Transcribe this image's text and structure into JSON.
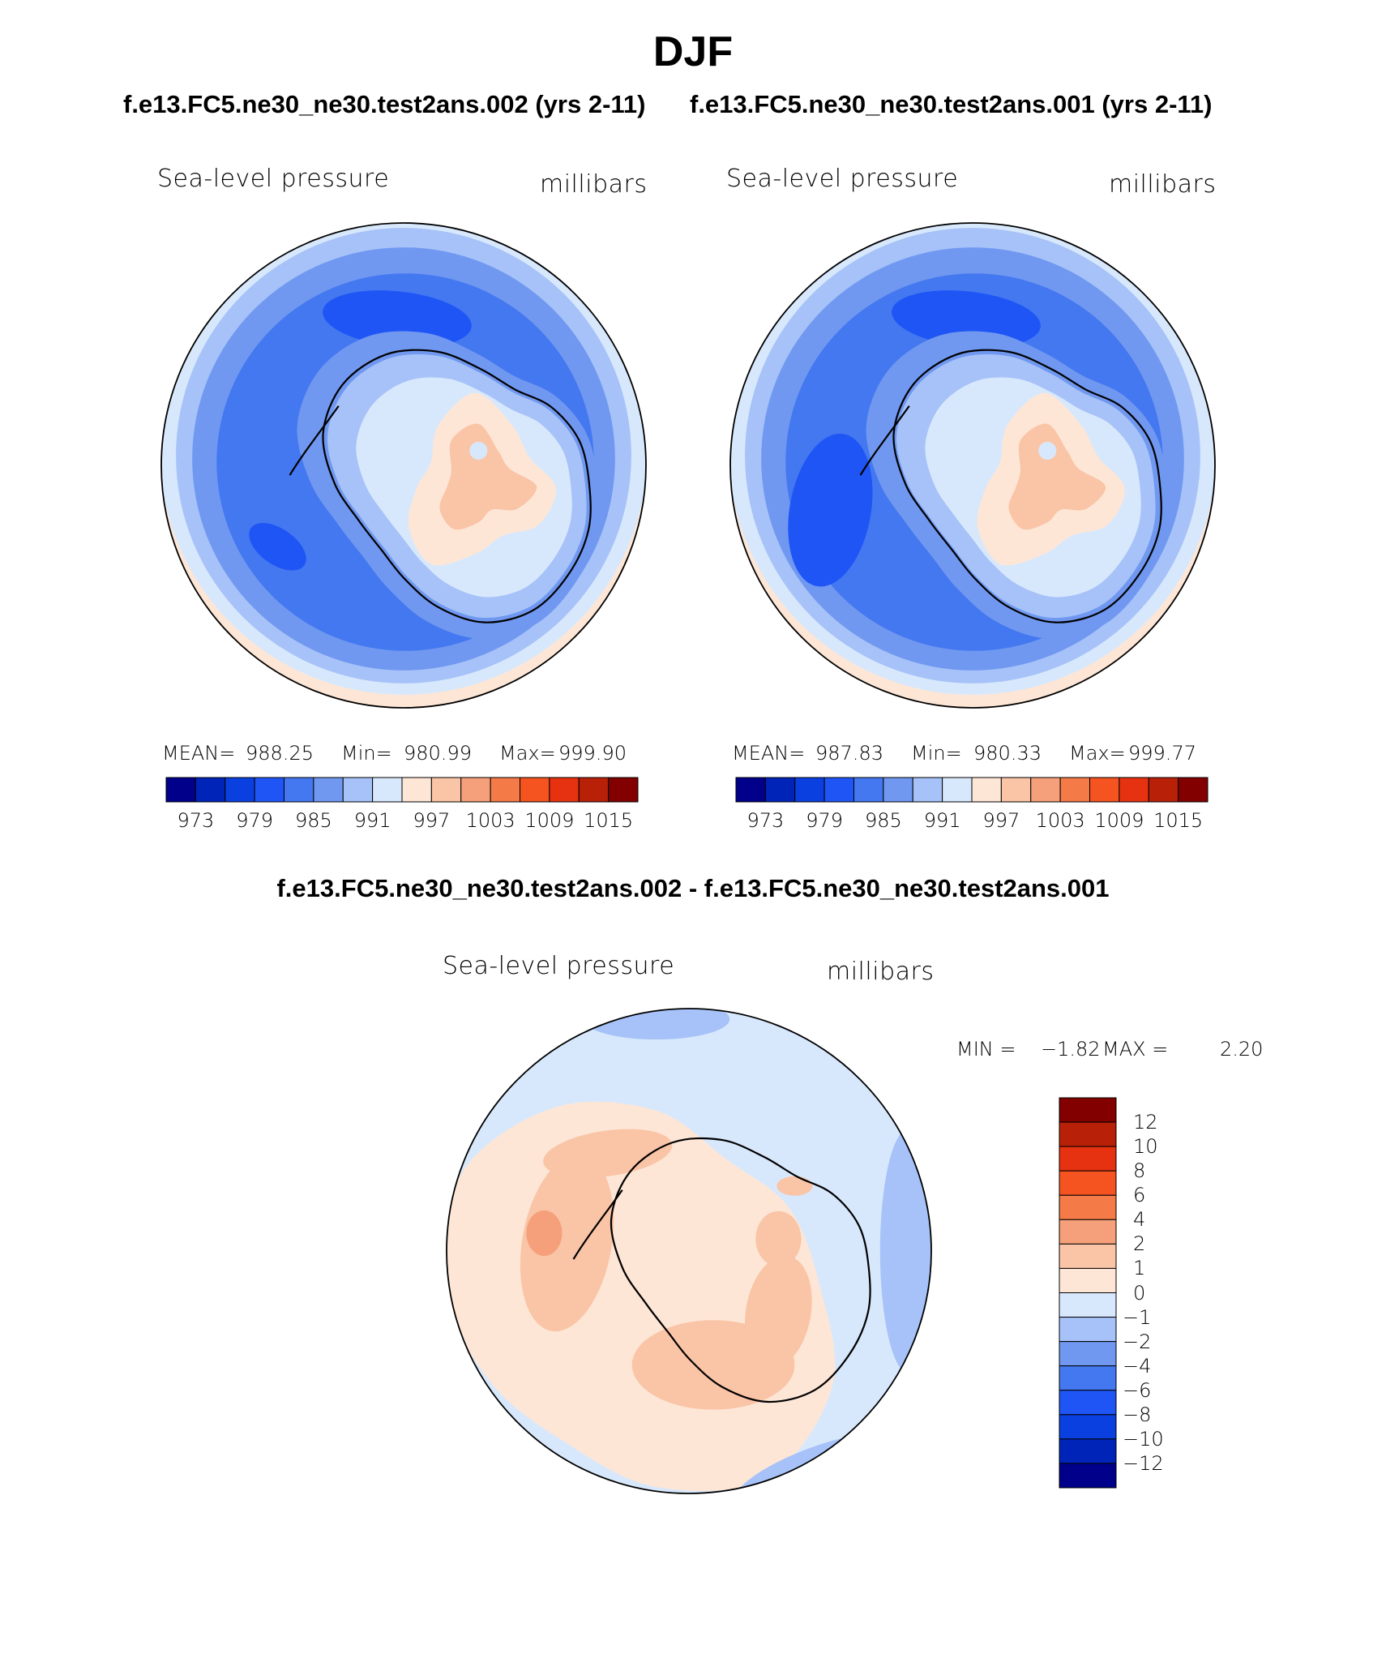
{
  "title": "DJF",
  "subtitles": {
    "left": "f.e13.FC5.ne30_ne30.test2ans.002 (yrs 2-11)",
    "right": "f.e13.FC5.ne30_ne30.test2ans.001 (yrs 2-11)",
    "difference": "f.e13.FC5.ne30_ne30.test2ans.002 - f.e13.FC5.ne30_ne30.test2ans.001"
  },
  "colors": {
    "levels": [
      "#00008a",
      "#0024b8",
      "#0a3fe0",
      "#1f55f5",
      "#4478f0",
      "#7098f0",
      "#a6c2f8",
      "#d8e8fc",
      "#fde6d6",
      "#fac4a6",
      "#f5a07a",
      "#f47a48",
      "#f55420",
      "#e63210",
      "#b82008",
      "#820000"
    ],
    "coast": "#000000",
    "diff_palette": [
      "#00008a",
      "#0024b8",
      "#0a3fe0",
      "#1f55f5",
      "#4478f0",
      "#7098f0",
      "#a6c2f8",
      "#d8e8fc",
      "#fde6d6",
      "#fac4a6",
      "#f5a07a",
      "#f47a48",
      "#f55420",
      "#e63210",
      "#b82008",
      "#820000"
    ]
  },
  "chart_data": [
    {
      "type": "heatmap",
      "panel": "case-002",
      "projection": "south-polar-stereographic",
      "title_left": "Sea-level pressure",
      "title_right": "millibars",
      "stats": {
        "mean_label": "MEAN=",
        "mean": "988.25",
        "min_label": "Min=",
        "min": "980.99",
        "max_label": "Max=",
        "max": "999.90"
      },
      "contour_levels": [
        973,
        976,
        979,
        982,
        985,
        988,
        991,
        994,
        997,
        1000,
        1003,
        1006,
        1009,
        1012,
        1015
      ],
      "colorbar_tick_labels": [
        "973",
        "979",
        "985",
        "991",
        "997",
        "1003",
        "1009",
        "1015"
      ],
      "legend_position": "bottom"
    },
    {
      "type": "heatmap",
      "panel": "case-001",
      "projection": "south-polar-stereographic",
      "title_left": "Sea-level pressure",
      "title_right": "millibars",
      "stats": {
        "mean_label": "MEAN=",
        "mean": "987.83",
        "min_label": "Min=",
        "min": "980.33",
        "max_label": "Max=",
        "max": "999.77"
      },
      "contour_levels": [
        973,
        976,
        979,
        982,
        985,
        988,
        991,
        994,
        997,
        1000,
        1003,
        1006,
        1009,
        1012,
        1015
      ],
      "colorbar_tick_labels": [
        "973",
        "979",
        "985",
        "991",
        "997",
        "1003",
        "1009",
        "1015"
      ],
      "legend_position": "bottom"
    },
    {
      "type": "heatmap",
      "panel": "difference",
      "projection": "south-polar-stereographic",
      "title_left": "Sea-level pressure",
      "title_right": "millibars",
      "stats": {
        "min_label": "MIN =",
        "min": "−1.82",
        "max_label": "MAX =",
        "max": "2.20"
      },
      "contour_levels": [
        -12,
        -10,
        -8,
        -6,
        -4,
        -2,
        -1,
        0,
        1,
        2,
        4,
        6,
        8,
        10,
        12
      ],
      "colorbar_tick_labels": [
        "12",
        "10",
        "8",
        "6",
        "4",
        "2",
        "1",
        "0",
        "−1",
        "−2",
        "−4",
        "−6",
        "−8",
        "−10",
        "−12"
      ],
      "legend_position": "right"
    }
  ]
}
